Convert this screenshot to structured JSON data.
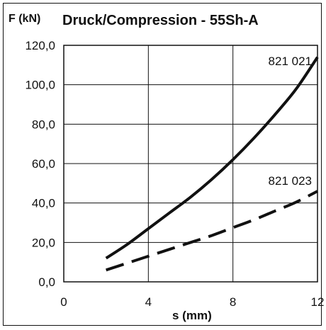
{
  "chart_data": {
    "type": "line",
    "title": "Druck/Compression - 55Sh-A",
    "ylabel": "F (kN)",
    "xlabel": "s (mm)",
    "xlim": [
      0,
      12
    ],
    "ylim": [
      0,
      120
    ],
    "x_ticks": [
      "0",
      "4",
      "8",
      "12"
    ],
    "y_ticks": [
      "0,0",
      "20,0",
      "40,0",
      "60,0",
      "80,0",
      "100,0",
      "120,0"
    ],
    "grid": true,
    "series": [
      {
        "name": "821 021",
        "style": "solid",
        "x": [
          2,
          3,
          4,
          5,
          6,
          7,
          8,
          9,
          10,
          11,
          12
        ],
        "y": [
          12,
          19,
          27,
          35,
          43,
          52,
          62,
          73,
          85,
          98,
          114
        ]
      },
      {
        "name": "821 023",
        "style": "dashed",
        "x": [
          2,
          3,
          4,
          5,
          6,
          7,
          8,
          9,
          10,
          11,
          12
        ],
        "y": [
          6,
          9.5,
          13,
          16.5,
          20,
          23.5,
          27.5,
          31.5,
          36,
          40.5,
          46
        ]
      }
    ]
  }
}
